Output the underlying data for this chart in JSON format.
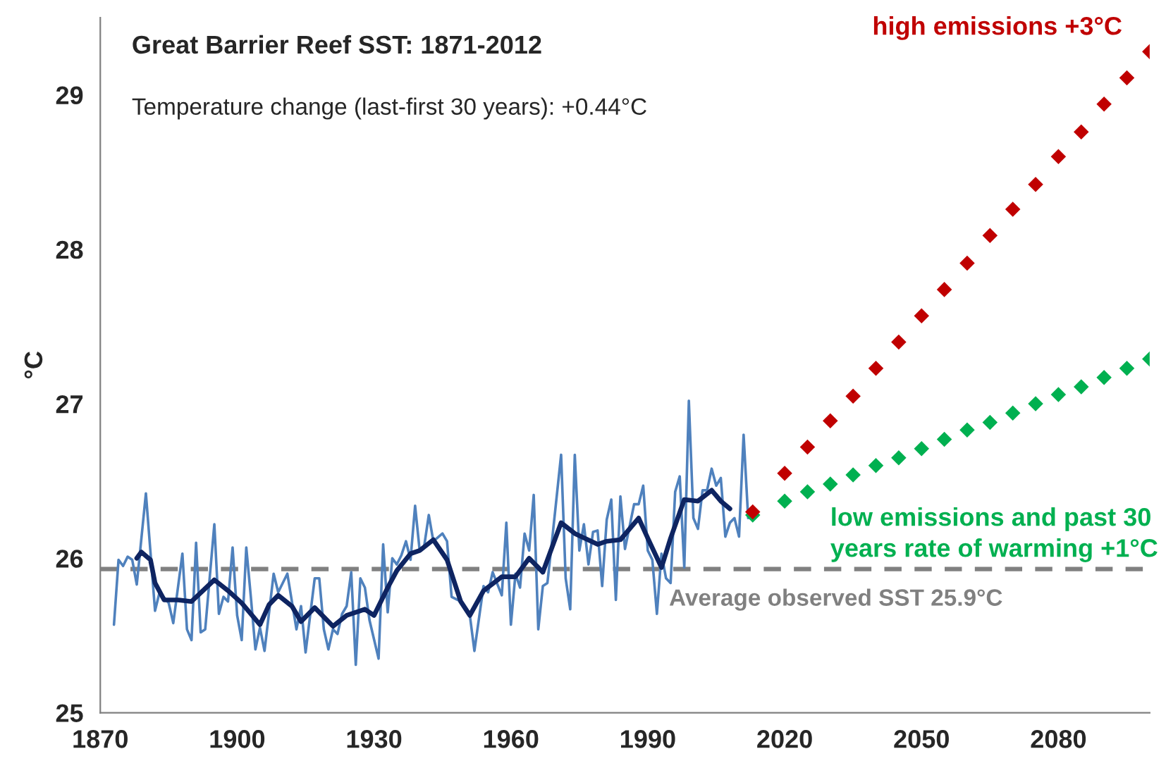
{
  "chart_data": {
    "type": "line",
    "title": "Great Barrier Reef SST: 1871-2012",
    "subtitle": "Temperature change (last-first 30 years): +0.44°C",
    "ylabel": "°C",
    "xlim": [
      1870,
      2100
    ],
    "xticks": [
      1870,
      1900,
      1930,
      1960,
      1990,
      2020,
      2050,
      2080
    ],
    "ylim": [
      25,
      29.5
    ],
    "yticks": [
      25,
      26,
      27,
      28,
      29
    ],
    "grid": false,
    "legend": false,
    "ref_lines": [
      {
        "axis": "y",
        "value": 25.93,
        "label": "Average observed SST 25.9°C",
        "color": "#808080",
        "line_style": "dashed"
      }
    ],
    "series": [
      {
        "color": "#4f81bd",
        "marker": "none",
        "line_style": "solid",
        "x": [
          1873,
          1874,
          1875,
          1876,
          1877,
          1878,
          1880,
          1882,
          1883,
          1885,
          1886,
          1888,
          1889,
          1890,
          1891,
          1892,
          1893,
          1895,
          1896,
          1897,
          1898,
          1899,
          1900,
          1901,
          1902,
          1903,
          1904,
          1905,
          1906,
          1908,
          1909,
          1911,
          1913,
          1914,
          1915,
          1917,
          1918,
          1919,
          1920,
          1921,
          1922,
          1923,
          1924,
          1925,
          1926,
          1927,
          1928,
          1929,
          1931,
          1932,
          1933,
          1934,
          1935,
          1936,
          1937,
          1938,
          1939,
          1940,
          1941,
          1942,
          1943,
          1945,
          1946,
          1947,
          1949,
          1951,
          1952,
          1954,
          1955,
          1956,
          1958,
          1959,
          1960,
          1961,
          1962,
          1963,
          1964,
          1965,
          1966,
          1967,
          1968,
          1969,
          1971,
          1972,
          1973,
          1974,
          1975,
          1976,
          1977,
          1978,
          1979,
          1980,
          1981,
          1982,
          1983,
          1984,
          1985,
          1987,
          1988,
          1989,
          1990,
          1991,
          1992,
          1993,
          1994,
          1995,
          1996,
          1997,
          1998,
          1999,
          2000,
          2001,
          2002,
          2003,
          2004,
          2005,
          2006,
          2007,
          2008,
          2009,
          2010,
          2011,
          2012
        ],
        "values": [
          25.57,
          25.99,
          25.95,
          26.01,
          25.99,
          25.83,
          26.42,
          25.66,
          25.78,
          25.71,
          25.58,
          26.03,
          25.54,
          25.47,
          26.1,
          25.52,
          25.54,
          26.22,
          25.64,
          25.75,
          25.72,
          26.07,
          25.63,
          25.47,
          26.07,
          25.75,
          25.41,
          25.55,
          25.4,
          25.9,
          25.78,
          25.9,
          25.54,
          25.69,
          25.39,
          25.87,
          25.87,
          25.54,
          25.41,
          25.54,
          25.51,
          25.64,
          25.69,
          25.91,
          25.31,
          25.87,
          25.81,
          25.6,
          25.35,
          26.09,
          25.65,
          26.0,
          25.96,
          26.02,
          26.11,
          25.99,
          26.34,
          26.05,
          26.08,
          26.28,
          26.11,
          26.16,
          26.11,
          25.75,
          25.72,
          25.63,
          25.4,
          25.82,
          25.78,
          25.91,
          25.76,
          26.23,
          25.57,
          25.9,
          25.81,
          26.16,
          26.05,
          26.41,
          25.54,
          25.82,
          25.84,
          26.11,
          26.67,
          25.87,
          25.67,
          26.67,
          26.05,
          26.22,
          25.96,
          26.17,
          26.18,
          25.82,
          26.25,
          26.38,
          25.73,
          26.4,
          26.06,
          26.35,
          26.35,
          26.47,
          26.05,
          25.99,
          25.64,
          26.03,
          25.87,
          25.84,
          26.43,
          26.53,
          25.94,
          27.02,
          26.26,
          26.19,
          26.44,
          26.44,
          26.58,
          26.47,
          26.52,
          26.14,
          26.23,
          26.26,
          26.14,
          26.8,
          26.26
        ]
      },
      {
        "color": "#0e2461",
        "marker": "none",
        "line_style": "solid",
        "x": [
          1878,
          1879,
          1881,
          1882,
          1884,
          1887,
          1890,
          1895,
          1898,
          1901,
          1905,
          1907,
          1909,
          1912,
          1914,
          1917,
          1919,
          1921,
          1924,
          1928,
          1930,
          1933,
          1935,
          1938,
          1940,
          1943,
          1946,
          1949,
          1951,
          1954,
          1958,
          1961,
          1964,
          1967,
          1971,
          1974,
          1979,
          1981,
          1984,
          1988,
          1990,
          1993,
          1995,
          1998,
          2001,
          2004,
          2006,
          2008
        ],
        "values": [
          26.0,
          26.04,
          25.99,
          25.84,
          25.73,
          25.73,
          25.72,
          25.86,
          25.79,
          25.71,
          25.57,
          25.7,
          25.76,
          25.69,
          25.59,
          25.68,
          25.62,
          25.56,
          25.63,
          25.67,
          25.63,
          25.81,
          25.92,
          26.03,
          26.05,
          26.12,
          25.99,
          25.72,
          25.63,
          25.79,
          25.88,
          25.88,
          26.0,
          25.91,
          26.23,
          26.16,
          26.09,
          26.11,
          26.12,
          26.26,
          26.13,
          25.94,
          26.13,
          26.38,
          26.37,
          26.44,
          26.37,
          26.32
        ]
      },
      {
        "type": "scatter",
        "name": "high emissions +3°C",
        "color": "#c00000",
        "marker": "diamond",
        "x": [
          2013,
          2020,
          2025,
          2030,
          2035,
          2040,
          2045,
          2050,
          2055,
          2060,
          2065,
          2070,
          2075,
          2080,
          2085,
          2090,
          2095,
          2100
        ],
        "values": [
          26.3,
          26.55,
          26.72,
          26.89,
          27.05,
          27.23,
          27.4,
          27.57,
          27.74,
          27.91,
          28.09,
          28.26,
          28.42,
          28.6,
          28.76,
          28.94,
          29.11,
          29.28
        ]
      },
      {
        "type": "scatter",
        "name": "low emissions and past 30 years rate of warming +1°C",
        "color": "#00b050",
        "marker": "diamond",
        "x": [
          2013,
          2020,
          2025,
          2030,
          2035,
          2040,
          2045,
          2050,
          2055,
          2060,
          2065,
          2070,
          2075,
          2080,
          2085,
          2090,
          2095,
          2100
        ],
        "values": [
          26.28,
          26.37,
          26.43,
          26.48,
          26.54,
          26.6,
          26.65,
          26.71,
          26.77,
          26.83,
          26.88,
          26.94,
          27.0,
          27.06,
          27.11,
          27.17,
          27.23,
          27.29
        ]
      }
    ]
  }
}
